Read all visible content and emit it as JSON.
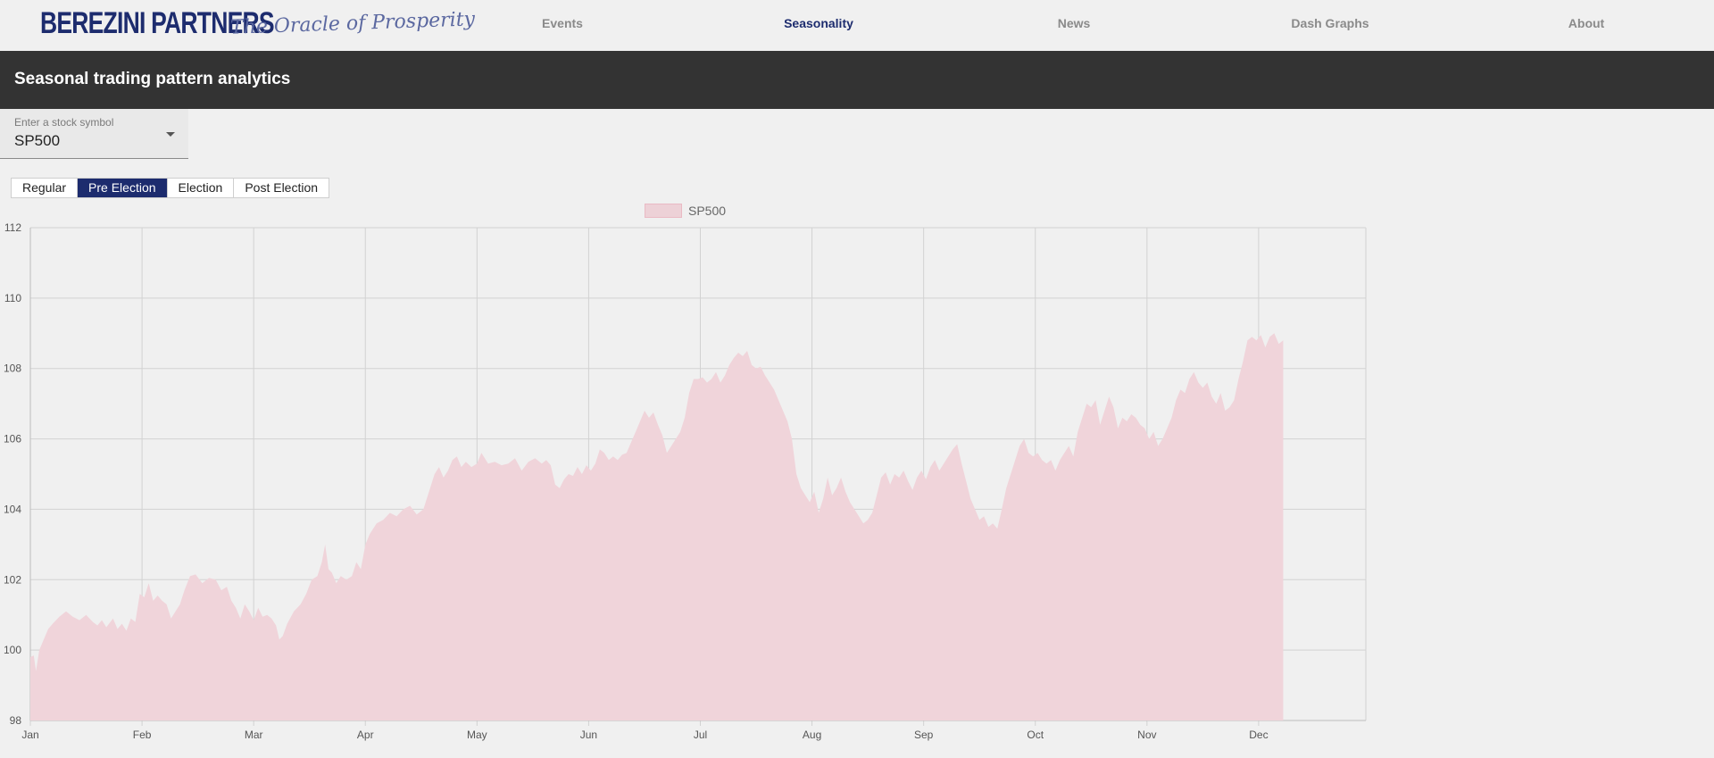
{
  "header": {
    "logo_text": "BEREZINI PARTNERS",
    "tagline": "The Oracle of Prosperity",
    "nav": [
      {
        "label": "Events"
      },
      {
        "label": "Seasonality",
        "active": true
      },
      {
        "label": "News"
      },
      {
        "label": "Dash Graphs"
      },
      {
        "label": "About"
      }
    ],
    "brand_color": "#1d2c6e"
  },
  "page": {
    "title": "Seasonal trading pattern analytics"
  },
  "symbol_select": {
    "label": "Enter a stock symbol",
    "value": "SP500"
  },
  "tabs": [
    {
      "label": "Regular"
    },
    {
      "label": "Pre Election",
      "active": true
    },
    {
      "label": "Election"
    },
    {
      "label": "Post Election"
    }
  ],
  "chart_data": {
    "type": "area",
    "legend": [
      "SP500"
    ],
    "legend_placement": "top-center",
    "grid": true,
    "fill_color": "#f0d4da",
    "ylim": [
      98,
      112
    ],
    "yticks": [
      98,
      100,
      102,
      104,
      106,
      108,
      110,
      112
    ],
    "month_labels": [
      "Jan",
      "Feb",
      "Mar",
      "Apr",
      "May",
      "Jun",
      "Jul",
      "Aug",
      "Sep",
      "Oct",
      "Nov",
      "Dec"
    ],
    "x_range_months": [
      0,
      11.96
    ],
    "series": [
      {
        "name": "SP500",
        "points": [
          [
            0.0,
            99.8
          ],
          [
            0.03,
            99.85
          ],
          [
            0.05,
            99.4
          ],
          [
            0.08,
            100.0
          ],
          [
            0.12,
            100.3
          ],
          [
            0.16,
            100.6
          ],
          [
            0.2,
            100.75
          ],
          [
            0.26,
            100.95
          ],
          [
            0.32,
            101.1
          ],
          [
            0.38,
            100.95
          ],
          [
            0.44,
            100.85
          ],
          [
            0.5,
            101.0
          ],
          [
            0.56,
            100.8
          ],
          [
            0.6,
            100.7
          ],
          [
            0.64,
            100.85
          ],
          [
            0.68,
            100.65
          ],
          [
            0.74,
            100.9
          ],
          [
            0.78,
            100.6
          ],
          [
            0.82,
            100.75
          ],
          [
            0.86,
            100.55
          ],
          [
            0.9,
            100.9
          ],
          [
            0.94,
            100.8
          ],
          [
            0.98,
            101.6
          ],
          [
            1.02,
            101.5
          ],
          [
            1.06,
            101.9
          ],
          [
            1.1,
            101.4
          ],
          [
            1.14,
            101.55
          ],
          [
            1.18,
            101.4
          ],
          [
            1.22,
            101.3
          ],
          [
            1.26,
            100.9
          ],
          [
            1.3,
            101.1
          ],
          [
            1.34,
            101.3
          ],
          [
            1.38,
            101.7
          ],
          [
            1.43,
            102.1
          ],
          [
            1.48,
            102.15
          ],
          [
            1.54,
            101.9
          ],
          [
            1.6,
            102.05
          ],
          [
            1.66,
            102.0
          ],
          [
            1.71,
            101.7
          ],
          [
            1.76,
            101.8
          ],
          [
            1.8,
            101.4
          ],
          [
            1.84,
            101.2
          ],
          [
            1.88,
            100.9
          ],
          [
            1.92,
            101.3
          ],
          [
            1.96,
            101.1
          ],
          [
            2.0,
            100.85
          ],
          [
            2.04,
            101.2
          ],
          [
            2.08,
            100.95
          ],
          [
            2.12,
            101.0
          ],
          [
            2.16,
            100.9
          ],
          [
            2.2,
            100.7
          ],
          [
            2.23,
            100.3
          ],
          [
            2.26,
            100.4
          ],
          [
            2.3,
            100.75
          ],
          [
            2.36,
            101.1
          ],
          [
            2.42,
            101.3
          ],
          [
            2.47,
            101.6
          ],
          [
            2.52,
            102.0
          ],
          [
            2.57,
            102.1
          ],
          [
            2.61,
            102.5
          ],
          [
            2.64,
            103.0
          ],
          [
            2.67,
            102.3
          ],
          [
            2.7,
            102.2
          ],
          [
            2.74,
            101.9
          ],
          [
            2.78,
            102.1
          ],
          [
            2.83,
            102.0
          ],
          [
            2.88,
            102.1
          ],
          [
            2.92,
            102.5
          ],
          [
            2.96,
            102.3
          ],
          [
            3.0,
            103.0
          ],
          [
            3.04,
            103.3
          ],
          [
            3.1,
            103.6
          ],
          [
            3.16,
            103.7
          ],
          [
            3.22,
            103.9
          ],
          [
            3.28,
            103.8
          ],
          [
            3.34,
            104.0
          ],
          [
            3.4,
            104.1
          ],
          [
            3.46,
            103.85
          ],
          [
            3.52,
            104.0
          ],
          [
            3.58,
            104.6
          ],
          [
            3.62,
            105.0
          ],
          [
            3.66,
            105.2
          ],
          [
            3.7,
            104.9
          ],
          [
            3.74,
            105.1
          ],
          [
            3.78,
            105.4
          ],
          [
            3.82,
            105.5
          ],
          [
            3.86,
            105.2
          ],
          [
            3.9,
            105.35
          ],
          [
            3.95,
            105.2
          ],
          [
            4.0,
            105.3
          ],
          [
            4.04,
            105.6
          ],
          [
            4.1,
            105.3
          ],
          [
            4.16,
            105.35
          ],
          [
            4.22,
            105.25
          ],
          [
            4.28,
            105.3
          ],
          [
            4.34,
            105.45
          ],
          [
            4.4,
            105.1
          ],
          [
            4.46,
            105.35
          ],
          [
            4.52,
            105.45
          ],
          [
            4.58,
            105.3
          ],
          [
            4.62,
            105.4
          ],
          [
            4.66,
            105.25
          ],
          [
            4.7,
            104.7
          ],
          [
            4.74,
            104.6
          ],
          [
            4.78,
            104.85
          ],
          [
            4.82,
            105.0
          ],
          [
            4.86,
            104.95
          ],
          [
            4.9,
            105.2
          ],
          [
            4.94,
            105.0
          ],
          [
            4.98,
            105.25
          ],
          [
            5.02,
            105.1
          ],
          [
            5.06,
            105.3
          ],
          [
            5.1,
            105.7
          ],
          [
            5.14,
            105.6
          ],
          [
            5.18,
            105.4
          ],
          [
            5.22,
            105.5
          ],
          [
            5.26,
            105.4
          ],
          [
            5.3,
            105.55
          ],
          [
            5.34,
            105.6
          ],
          [
            5.38,
            105.9
          ],
          [
            5.42,
            106.2
          ],
          [
            5.46,
            106.5
          ],
          [
            5.5,
            106.8
          ],
          [
            5.54,
            106.6
          ],
          [
            5.58,
            106.75
          ],
          [
            5.62,
            106.4
          ],
          [
            5.66,
            106.1
          ],
          [
            5.7,
            105.6
          ],
          [
            5.74,
            105.8
          ],
          [
            5.78,
            106.0
          ],
          [
            5.82,
            106.2
          ],
          [
            5.86,
            106.6
          ],
          [
            5.9,
            107.3
          ],
          [
            5.94,
            107.7
          ],
          [
            5.98,
            107.7
          ],
          [
            6.02,
            107.75
          ],
          [
            6.06,
            107.6
          ],
          [
            6.1,
            107.7
          ],
          [
            6.14,
            107.9
          ],
          [
            6.18,
            107.6
          ],
          [
            6.22,
            107.8
          ],
          [
            6.26,
            108.1
          ],
          [
            6.3,
            108.3
          ],
          [
            6.34,
            108.45
          ],
          [
            6.38,
            108.35
          ],
          [
            6.42,
            108.5
          ],
          [
            6.46,
            108.1
          ],
          [
            6.5,
            108.0
          ],
          [
            6.54,
            108.05
          ],
          [
            6.58,
            107.8
          ],
          [
            6.62,
            107.6
          ],
          [
            6.66,
            107.4
          ],
          [
            6.7,
            107.1
          ],
          [
            6.74,
            106.8
          ],
          [
            6.78,
            106.5
          ],
          [
            6.82,
            106.0
          ],
          [
            6.86,
            105.0
          ],
          [
            6.9,
            104.6
          ],
          [
            6.94,
            104.4
          ],
          [
            6.98,
            104.2
          ],
          [
            7.02,
            104.5
          ],
          [
            7.06,
            103.9
          ],
          [
            7.1,
            104.3
          ],
          [
            7.14,
            104.9
          ],
          [
            7.18,
            104.4
          ],
          [
            7.22,
            104.6
          ],
          [
            7.26,
            104.9
          ],
          [
            7.3,
            104.5
          ],
          [
            7.34,
            104.2
          ],
          [
            7.38,
            104.0
          ],
          [
            7.42,
            103.8
          ],
          [
            7.46,
            103.6
          ],
          [
            7.5,
            103.7
          ],
          [
            7.54,
            103.9
          ],
          [
            7.58,
            104.4
          ],
          [
            7.62,
            104.9
          ],
          [
            7.66,
            105.05
          ],
          [
            7.7,
            104.7
          ],
          [
            7.74,
            105.0
          ],
          [
            7.78,
            104.9
          ],
          [
            7.82,
            105.1
          ],
          [
            7.86,
            104.8
          ],
          [
            7.9,
            104.55
          ],
          [
            7.94,
            104.9
          ],
          [
            7.98,
            105.1
          ],
          [
            8.02,
            104.85
          ],
          [
            8.06,
            105.2
          ],
          [
            8.1,
            105.4
          ],
          [
            8.14,
            105.1
          ],
          [
            8.18,
            105.3
          ],
          [
            8.22,
            105.5
          ],
          [
            8.26,
            105.7
          ],
          [
            8.3,
            105.85
          ],
          [
            8.34,
            105.3
          ],
          [
            8.38,
            104.8
          ],
          [
            8.42,
            104.3
          ],
          [
            8.46,
            104.0
          ],
          [
            8.5,
            103.7
          ],
          [
            8.54,
            103.8
          ],
          [
            8.58,
            103.5
          ],
          [
            8.62,
            103.6
          ],
          [
            8.66,
            103.45
          ],
          [
            8.7,
            104.0
          ],
          [
            8.74,
            104.6
          ],
          [
            8.78,
            105.0
          ],
          [
            8.82,
            105.4
          ],
          [
            8.86,
            105.8
          ],
          [
            8.9,
            106.0
          ],
          [
            8.94,
            105.6
          ],
          [
            8.98,
            105.5
          ],
          [
            9.02,
            105.6
          ],
          [
            9.06,
            105.4
          ],
          [
            9.1,
            105.3
          ],
          [
            9.14,
            105.4
          ],
          [
            9.18,
            105.1
          ],
          [
            9.22,
            105.4
          ],
          [
            9.26,
            105.6
          ],
          [
            9.3,
            105.8
          ],
          [
            9.34,
            105.5
          ],
          [
            9.38,
            106.2
          ],
          [
            9.42,
            106.6
          ],
          [
            9.46,
            107.0
          ],
          [
            9.5,
            106.9
          ],
          [
            9.54,
            107.1
          ],
          [
            9.58,
            106.4
          ],
          [
            9.62,
            106.8
          ],
          [
            9.66,
            107.2
          ],
          [
            9.7,
            106.9
          ],
          [
            9.74,
            106.3
          ],
          [
            9.78,
            106.6
          ],
          [
            9.82,
            106.5
          ],
          [
            9.86,
            106.7
          ],
          [
            9.9,
            106.6
          ],
          [
            9.94,
            106.4
          ],
          [
            9.98,
            106.3
          ],
          [
            10.02,
            106.0
          ],
          [
            10.06,
            106.2
          ],
          [
            10.1,
            105.8
          ],
          [
            10.14,
            106.0
          ],
          [
            10.18,
            106.3
          ],
          [
            10.22,
            106.6
          ],
          [
            10.26,
            107.1
          ],
          [
            10.3,
            107.4
          ],
          [
            10.34,
            107.3
          ],
          [
            10.38,
            107.7
          ],
          [
            10.42,
            107.9
          ],
          [
            10.46,
            107.6
          ],
          [
            10.5,
            107.45
          ],
          [
            10.54,
            107.6
          ],
          [
            10.58,
            107.2
          ],
          [
            10.62,
            107.0
          ],
          [
            10.66,
            107.3
          ],
          [
            10.7,
            106.8
          ],
          [
            10.74,
            106.9
          ],
          [
            10.78,
            107.1
          ],
          [
            10.82,
            107.7
          ],
          [
            10.86,
            108.2
          ],
          [
            10.9,
            108.8
          ],
          [
            10.94,
            108.9
          ],
          [
            10.98,
            108.8
          ],
          [
            11.02,
            108.95
          ],
          [
            11.06,
            108.6
          ],
          [
            11.1,
            108.9
          ],
          [
            11.14,
            109.0
          ],
          [
            11.18,
            108.7
          ],
          [
            11.22,
            108.8
          ]
        ]
      }
    ]
  }
}
